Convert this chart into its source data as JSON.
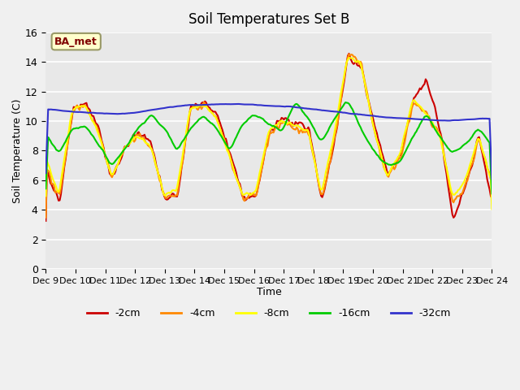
{
  "title": "Soil Temperatures Set B",
  "xlabel": "Time",
  "ylabel": "Soil Temperature (C)",
  "ylim": [
    0,
    16
  ],
  "xlim": [
    0,
    384
  ],
  "annotation": "BA_met",
  "bg_color": "#e8e8e8",
  "legend_labels": [
    "-2cm",
    "-4cm",
    "-8cm",
    "-16cm",
    "-32cm"
  ],
  "line_colors": [
    "#cc0000",
    "#ff8800",
    "#ffff00",
    "#00cc00",
    "#3333cc"
  ],
  "xtick_positions": [
    0,
    16,
    32,
    48,
    64,
    80,
    96,
    112,
    128,
    144,
    160,
    176,
    192,
    208,
    224,
    240
  ],
  "xtick_labels": [
    "Dec 9",
    "Dec 10",
    "Dec 11",
    "Dec 12",
    "Dec 13",
    "Dec 14",
    "Dec 15",
    "Dec 16",
    "Dec 17",
    "Dec 18",
    "Dec 19",
    "Dec 20",
    "Dec 21",
    "Dec 22",
    "Dec 23",
    "Dec 24"
  ],
  "ytick_positions": [
    0,
    2,
    4,
    6,
    8,
    10,
    12,
    14,
    16
  ],
  "figsize": [
    6.4,
    4.8
  ],
  "dpi": 100
}
